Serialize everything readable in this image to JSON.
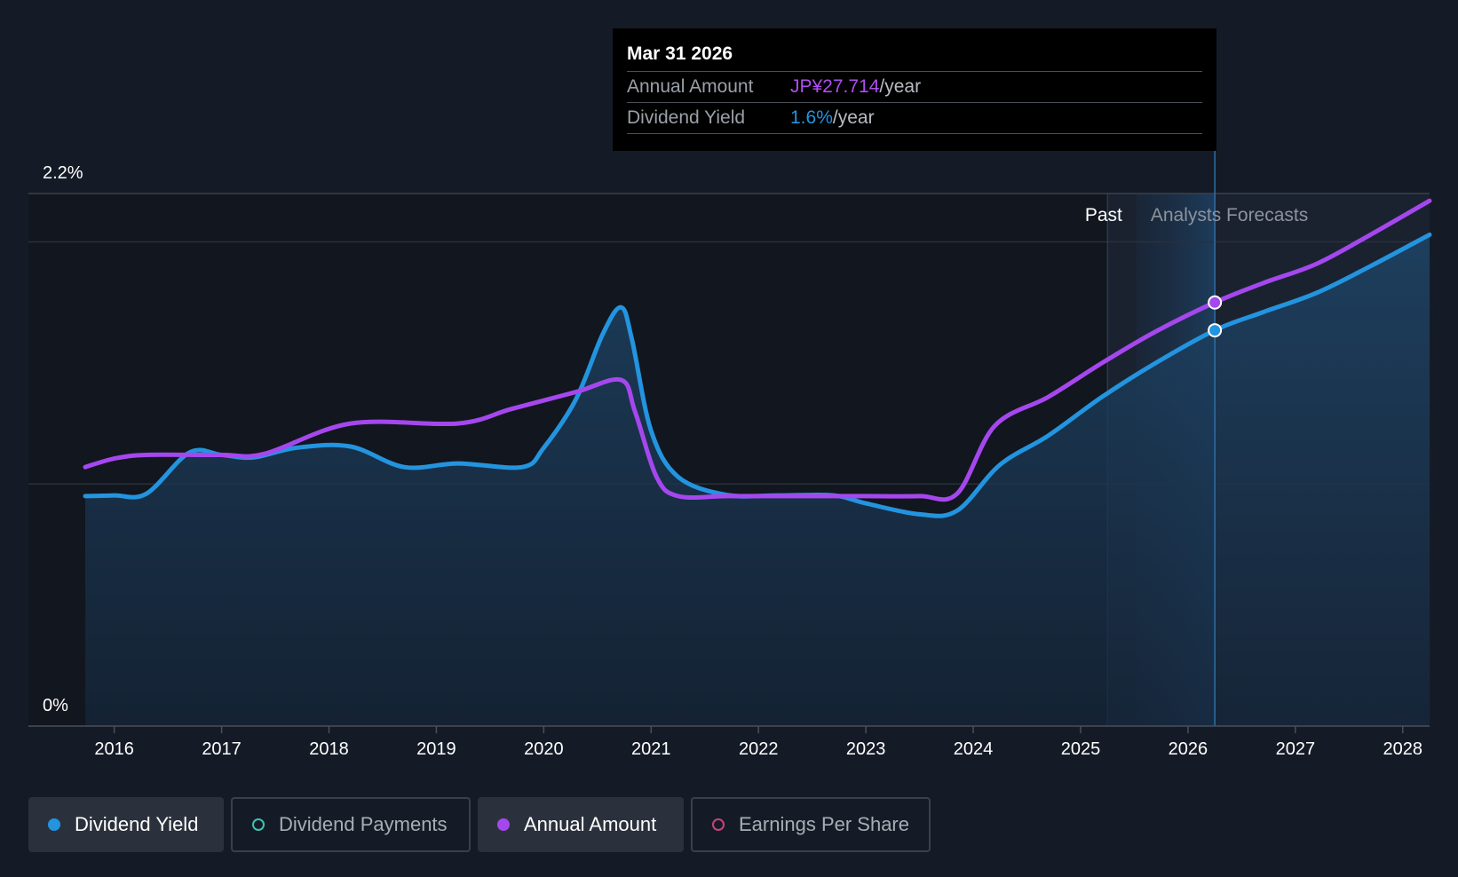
{
  "tooltip": {
    "date": "Mar 31 2026",
    "annual_label": "Annual Amount",
    "annual_value": "JP¥27.714",
    "annual_unit": "/year",
    "yield_label": "Dividend Yield",
    "yield_value": "1.6%",
    "yield_unit": "/year"
  },
  "legend": {
    "dividend_yield": "Dividend Yield",
    "dividend_payments": "Dividend Payments",
    "annual_amount": "Annual Amount",
    "earnings_per_share": "Earnings Per Share"
  },
  "colors": {
    "yield": "#2394df",
    "annual": "#a547ee",
    "payments": "#3fc1b0",
    "eps": "#c2457a",
    "background": "#151b26"
  },
  "chart_data": {
    "type": "line",
    "y_axis": {
      "min_label": "0%",
      "max_label": "2.2%",
      "ylim": [
        0,
        2.2
      ]
    },
    "x_tick_labels": [
      "2016",
      "2017",
      "2018",
      "2019",
      "2020",
      "2021",
      "2022",
      "2023",
      "2024",
      "2025",
      "2026",
      "2027",
      "2028"
    ],
    "x_range": [
      2015.73,
      2028.25
    ],
    "region_labels": {
      "past": "Past",
      "forecast": "Analysts Forecasts"
    },
    "past_end": 2025.25,
    "forecast_start": 2025.52,
    "cursor_x": 2026.25,
    "series": [
      {
        "name": "Dividend Yield",
        "key": "yield",
        "fill": true,
        "points": [
          [
            2015.73,
            0.95
          ],
          [
            2016.0,
            0.953
          ],
          [
            2016.3,
            0.96
          ],
          [
            2016.7,
            1.13
          ],
          [
            2017.0,
            1.12
          ],
          [
            2017.3,
            1.11
          ],
          [
            2017.7,
            1.15
          ],
          [
            2018.2,
            1.155
          ],
          [
            2018.7,
            1.07
          ],
          [
            2019.2,
            1.085
          ],
          [
            2019.8,
            1.07
          ],
          [
            2020.0,
            1.15
          ],
          [
            2020.3,
            1.35
          ],
          [
            2020.55,
            1.62
          ],
          [
            2020.72,
            1.73
          ],
          [
            2020.82,
            1.6
          ],
          [
            2021.0,
            1.22
          ],
          [
            2021.25,
            1.03
          ],
          [
            2021.7,
            0.955
          ],
          [
            2022.2,
            0.953
          ],
          [
            2022.7,
            0.953
          ],
          [
            2023.0,
            0.92
          ],
          [
            2023.5,
            0.875
          ],
          [
            2023.85,
            0.89
          ],
          [
            2024.25,
            1.08
          ],
          [
            2024.7,
            1.2
          ],
          [
            2025.2,
            1.36
          ],
          [
            2025.7,
            1.5
          ],
          [
            2026.25,
            1.635
          ],
          [
            2026.7,
            1.71
          ],
          [
            2027.2,
            1.79
          ],
          [
            2027.7,
            1.9
          ],
          [
            2028.25,
            2.03
          ]
        ]
      },
      {
        "name": "Annual Amount",
        "key": "annual",
        "fill": false,
        "points": [
          [
            2015.73,
            1.07
          ],
          [
            2016.0,
            1.105
          ],
          [
            2016.3,
            1.12
          ],
          [
            2017.0,
            1.12
          ],
          [
            2017.4,
            1.125
          ],
          [
            2018.2,
            1.25
          ],
          [
            2019.2,
            1.25
          ],
          [
            2019.7,
            1.31
          ],
          [
            2020.3,
            1.38
          ],
          [
            2020.72,
            1.43
          ],
          [
            2020.85,
            1.3
          ],
          [
            2021.05,
            1.03
          ],
          [
            2021.25,
            0.95
          ],
          [
            2021.7,
            0.95
          ],
          [
            2022.2,
            0.95
          ],
          [
            2022.7,
            0.95
          ],
          [
            2023.0,
            0.95
          ],
          [
            2023.5,
            0.95
          ],
          [
            2023.85,
            0.96
          ],
          [
            2024.2,
            1.24
          ],
          [
            2024.7,
            1.36
          ],
          [
            2025.2,
            1.5
          ],
          [
            2025.7,
            1.63
          ],
          [
            2026.25,
            1.75
          ],
          [
            2026.7,
            1.83
          ],
          [
            2027.2,
            1.91
          ],
          [
            2027.7,
            2.03
          ],
          [
            2028.25,
            2.17
          ]
        ]
      }
    ],
    "cursor_points": [
      {
        "series": "Annual Amount",
        "x": 2026.25,
        "y": 1.75
      },
      {
        "series": "Dividend Yield",
        "x": 2026.25,
        "y": 1.635
      }
    ]
  }
}
